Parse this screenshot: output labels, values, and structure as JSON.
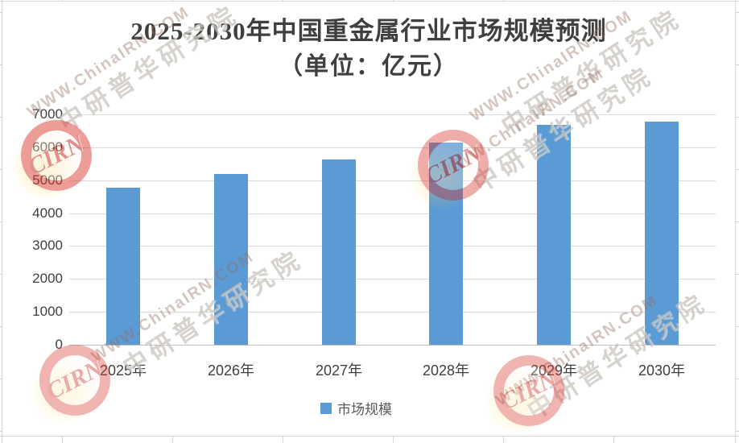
{
  "chart_data": {
    "type": "bar",
    "title": "2025-2030年中国重金属行业市场规模预测",
    "subtitle": "（单位：亿元）",
    "categories": [
      "2025年",
      "2026年",
      "2027年",
      "2028年",
      "2029年",
      "2030年"
    ],
    "series": [
      {
        "name": "市场规模",
        "values": [
          4780,
          5190,
          5630,
          6140,
          6690,
          6790
        ]
      }
    ],
    "ylim": [
      0,
      7000
    ],
    "ytick_interval": 1000,
    "ytick_labels": [
      "7000",
      "6000",
      "5000",
      "4000",
      "3000",
      "2000",
      "1000",
      "0"
    ],
    "grid": true,
    "legend_position": "bottom",
    "bar_color": "#5B9BD5"
  },
  "legend": {
    "label": "市场规模"
  },
  "watermark": {
    "url_text": "WWW.ChinaIRN.COM",
    "cn_text": "中研普华研究院",
    "logo_text": "CIRN"
  },
  "colors": {
    "bar": "#5B9BD5",
    "gridline": "#D9D9D9",
    "axis_line": "#BFBFBF",
    "title_text": "#3F3F3F",
    "axis_text": "#404040",
    "legend_text": "#595959",
    "watermark_red": "#D6281E",
    "watermark_yellow": "#FFD34D"
  }
}
